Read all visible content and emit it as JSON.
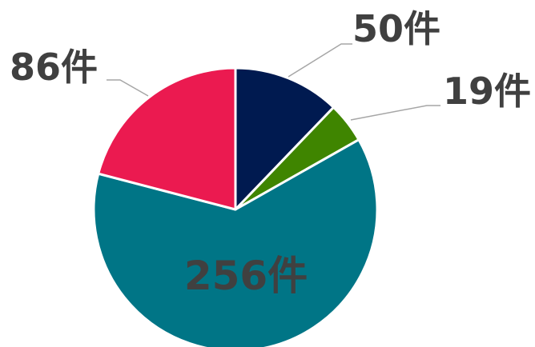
{
  "chart_data": {
    "type": "pie",
    "unit": "件",
    "slices": [
      {
        "value": 50,
        "label": "50件",
        "color": "#001a50"
      },
      {
        "value": 19,
        "label": "19件",
        "color": "#3f8500"
      },
      {
        "value": 256,
        "label": "256件",
        "color": "#007586"
      },
      {
        "value": 86,
        "label": "86件",
        "color": "#eb1a50"
      }
    ],
    "start_angle_deg": 0,
    "direction": "clockwise",
    "legend": "none",
    "leader_line_color": "#a6a6a6",
    "label_color": "#404040"
  }
}
